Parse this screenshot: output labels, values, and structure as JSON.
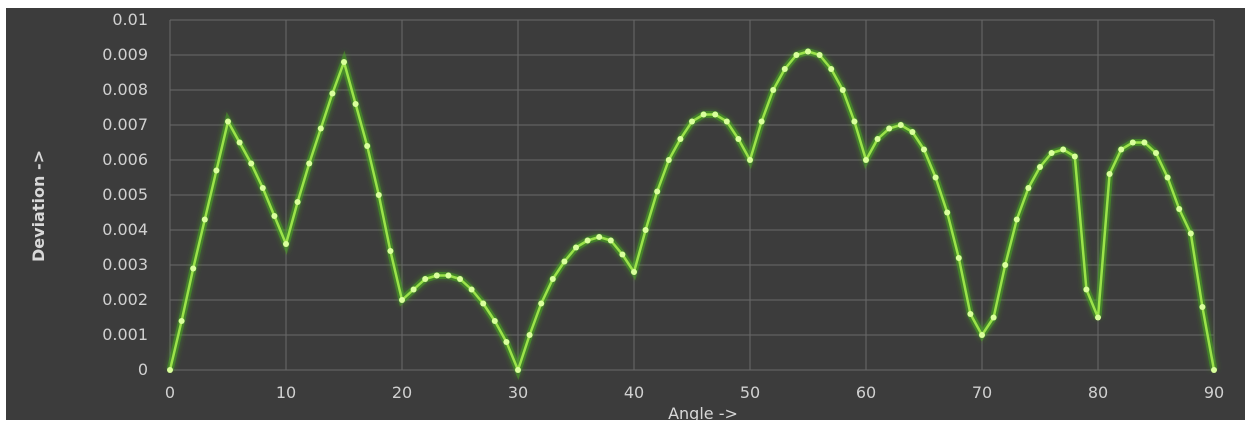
{
  "chart_data": {
    "type": "line",
    "xlabel": "Angle ->",
    "ylabel": "Deviation ->",
    "xlim": [
      0,
      90
    ],
    "ylim": [
      0,
      0.01
    ],
    "x_ticks": [
      "0",
      "10",
      "20",
      "30",
      "40",
      "50",
      "60",
      "70",
      "80",
      "90"
    ],
    "y_ticks": [
      "0",
      "0.001",
      "0.002",
      "0.003",
      "0.004",
      "0.005",
      "0.006",
      "0.007",
      "0.008",
      "0.009",
      "0.01"
    ],
    "grid": true,
    "colors": {
      "line": "#9be34a",
      "marker": "#d9ff9c",
      "glow": "#4caf1e",
      "background": "#3c3c3c",
      "grid": "#6a6a6a"
    },
    "series": [
      {
        "x": [
          0,
          1,
          2,
          3,
          4,
          5,
          6,
          7,
          8,
          9,
          10,
          11,
          12,
          13,
          14,
          15,
          16,
          17,
          18,
          19,
          20,
          21,
          22,
          23,
          24,
          25,
          26,
          27,
          28,
          29,
          30,
          31,
          32,
          33,
          34,
          35,
          36,
          37,
          38,
          39,
          40,
          41,
          42,
          43,
          44,
          45,
          46,
          47,
          48,
          49,
          50,
          51,
          52,
          53,
          54,
          55,
          56,
          57,
          58,
          59,
          60,
          61,
          62,
          63,
          64,
          65,
          66,
          67,
          68,
          69,
          70,
          71,
          72,
          73,
          74,
          75,
          76,
          77,
          78,
          79,
          80,
          81,
          82,
          83,
          84,
          85,
          86,
          87,
          88,
          89,
          90
        ],
        "y": [
          0,
          0.0014,
          0.0029,
          0.0043,
          0.0057,
          0.0071,
          0.0065,
          0.0059,
          0.0052,
          0.0044,
          0.0036,
          0.0048,
          0.0059,
          0.0069,
          0.0079,
          0.0088,
          0.0076,
          0.0064,
          0.005,
          0.0034,
          0.002,
          0.0023,
          0.0026,
          0.0027,
          0.0027,
          0.0026,
          0.0023,
          0.0019,
          0.0014,
          0.0008,
          0,
          0.001,
          0.0019,
          0.0026,
          0.0031,
          0.0035,
          0.0037,
          0.0038,
          0.0037,
          0.0033,
          0.0028,
          0.004,
          0.0051,
          0.006,
          0.0066,
          0.0071,
          0.0073,
          0.0073,
          0.0071,
          0.0066,
          0.006,
          0.0071,
          0.008,
          0.0086,
          0.009,
          0.0091,
          0.009,
          0.0086,
          0.008,
          0.0071,
          0.006,
          0.0066,
          0.0069,
          0.007,
          0.0068,
          0.0063,
          0.0055,
          0.0045,
          0.0032,
          0.0016,
          0.001,
          0.0015,
          0.003,
          0.0043,
          0.0052,
          0.0058,
          0.0062,
          0.0063,
          0.0061,
          0.0023,
          0.0015,
          0.0056,
          0.0063,
          0.0065,
          0.0065,
          0.0062,
          0.0055,
          0.0046,
          0.0039,
          0.0018,
          0
        ]
      }
    ]
  }
}
